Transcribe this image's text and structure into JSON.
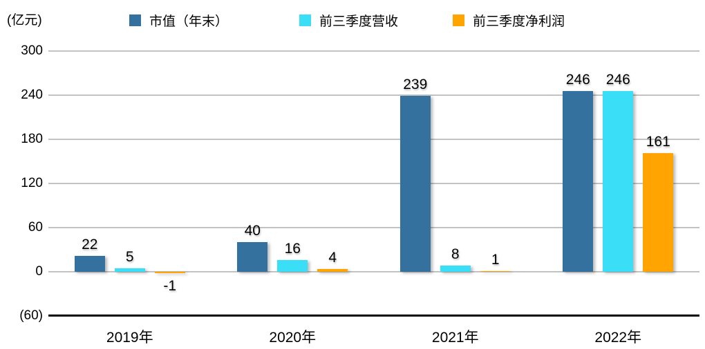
{
  "chart_data": {
    "type": "bar",
    "title": "",
    "unit_label": "(亿元)",
    "categories": [
      "2019年",
      "2020年",
      "2021年",
      "2022年"
    ],
    "series": [
      {
        "name": "市值（年末）",
        "color": "#35719E",
        "values": [
          22,
          40,
          239,
          246
        ]
      },
      {
        "name": "前三季度营收",
        "color": "#3BDEF7",
        "values": [
          5,
          16,
          8,
          246
        ]
      },
      {
        "name": "前三季度净利润",
        "color": "#FFA400",
        "values": [
          -1,
          4,
          1,
          161
        ]
      }
    ],
    "y_ticks": [
      300,
      240,
      180,
      120,
      60,
      0,
      -60
    ],
    "y_tick_labels": [
      "300",
      "240",
      "180",
      "120",
      "60",
      "0",
      "(60)"
    ],
    "ylim": [
      -60,
      300
    ],
    "grid": true,
    "legend_position": "top",
    "background": "#FFFFFF",
    "gridline_color": "#C2C2C2",
    "axis_line_color": "#000000",
    "text_color": "#000000"
  }
}
